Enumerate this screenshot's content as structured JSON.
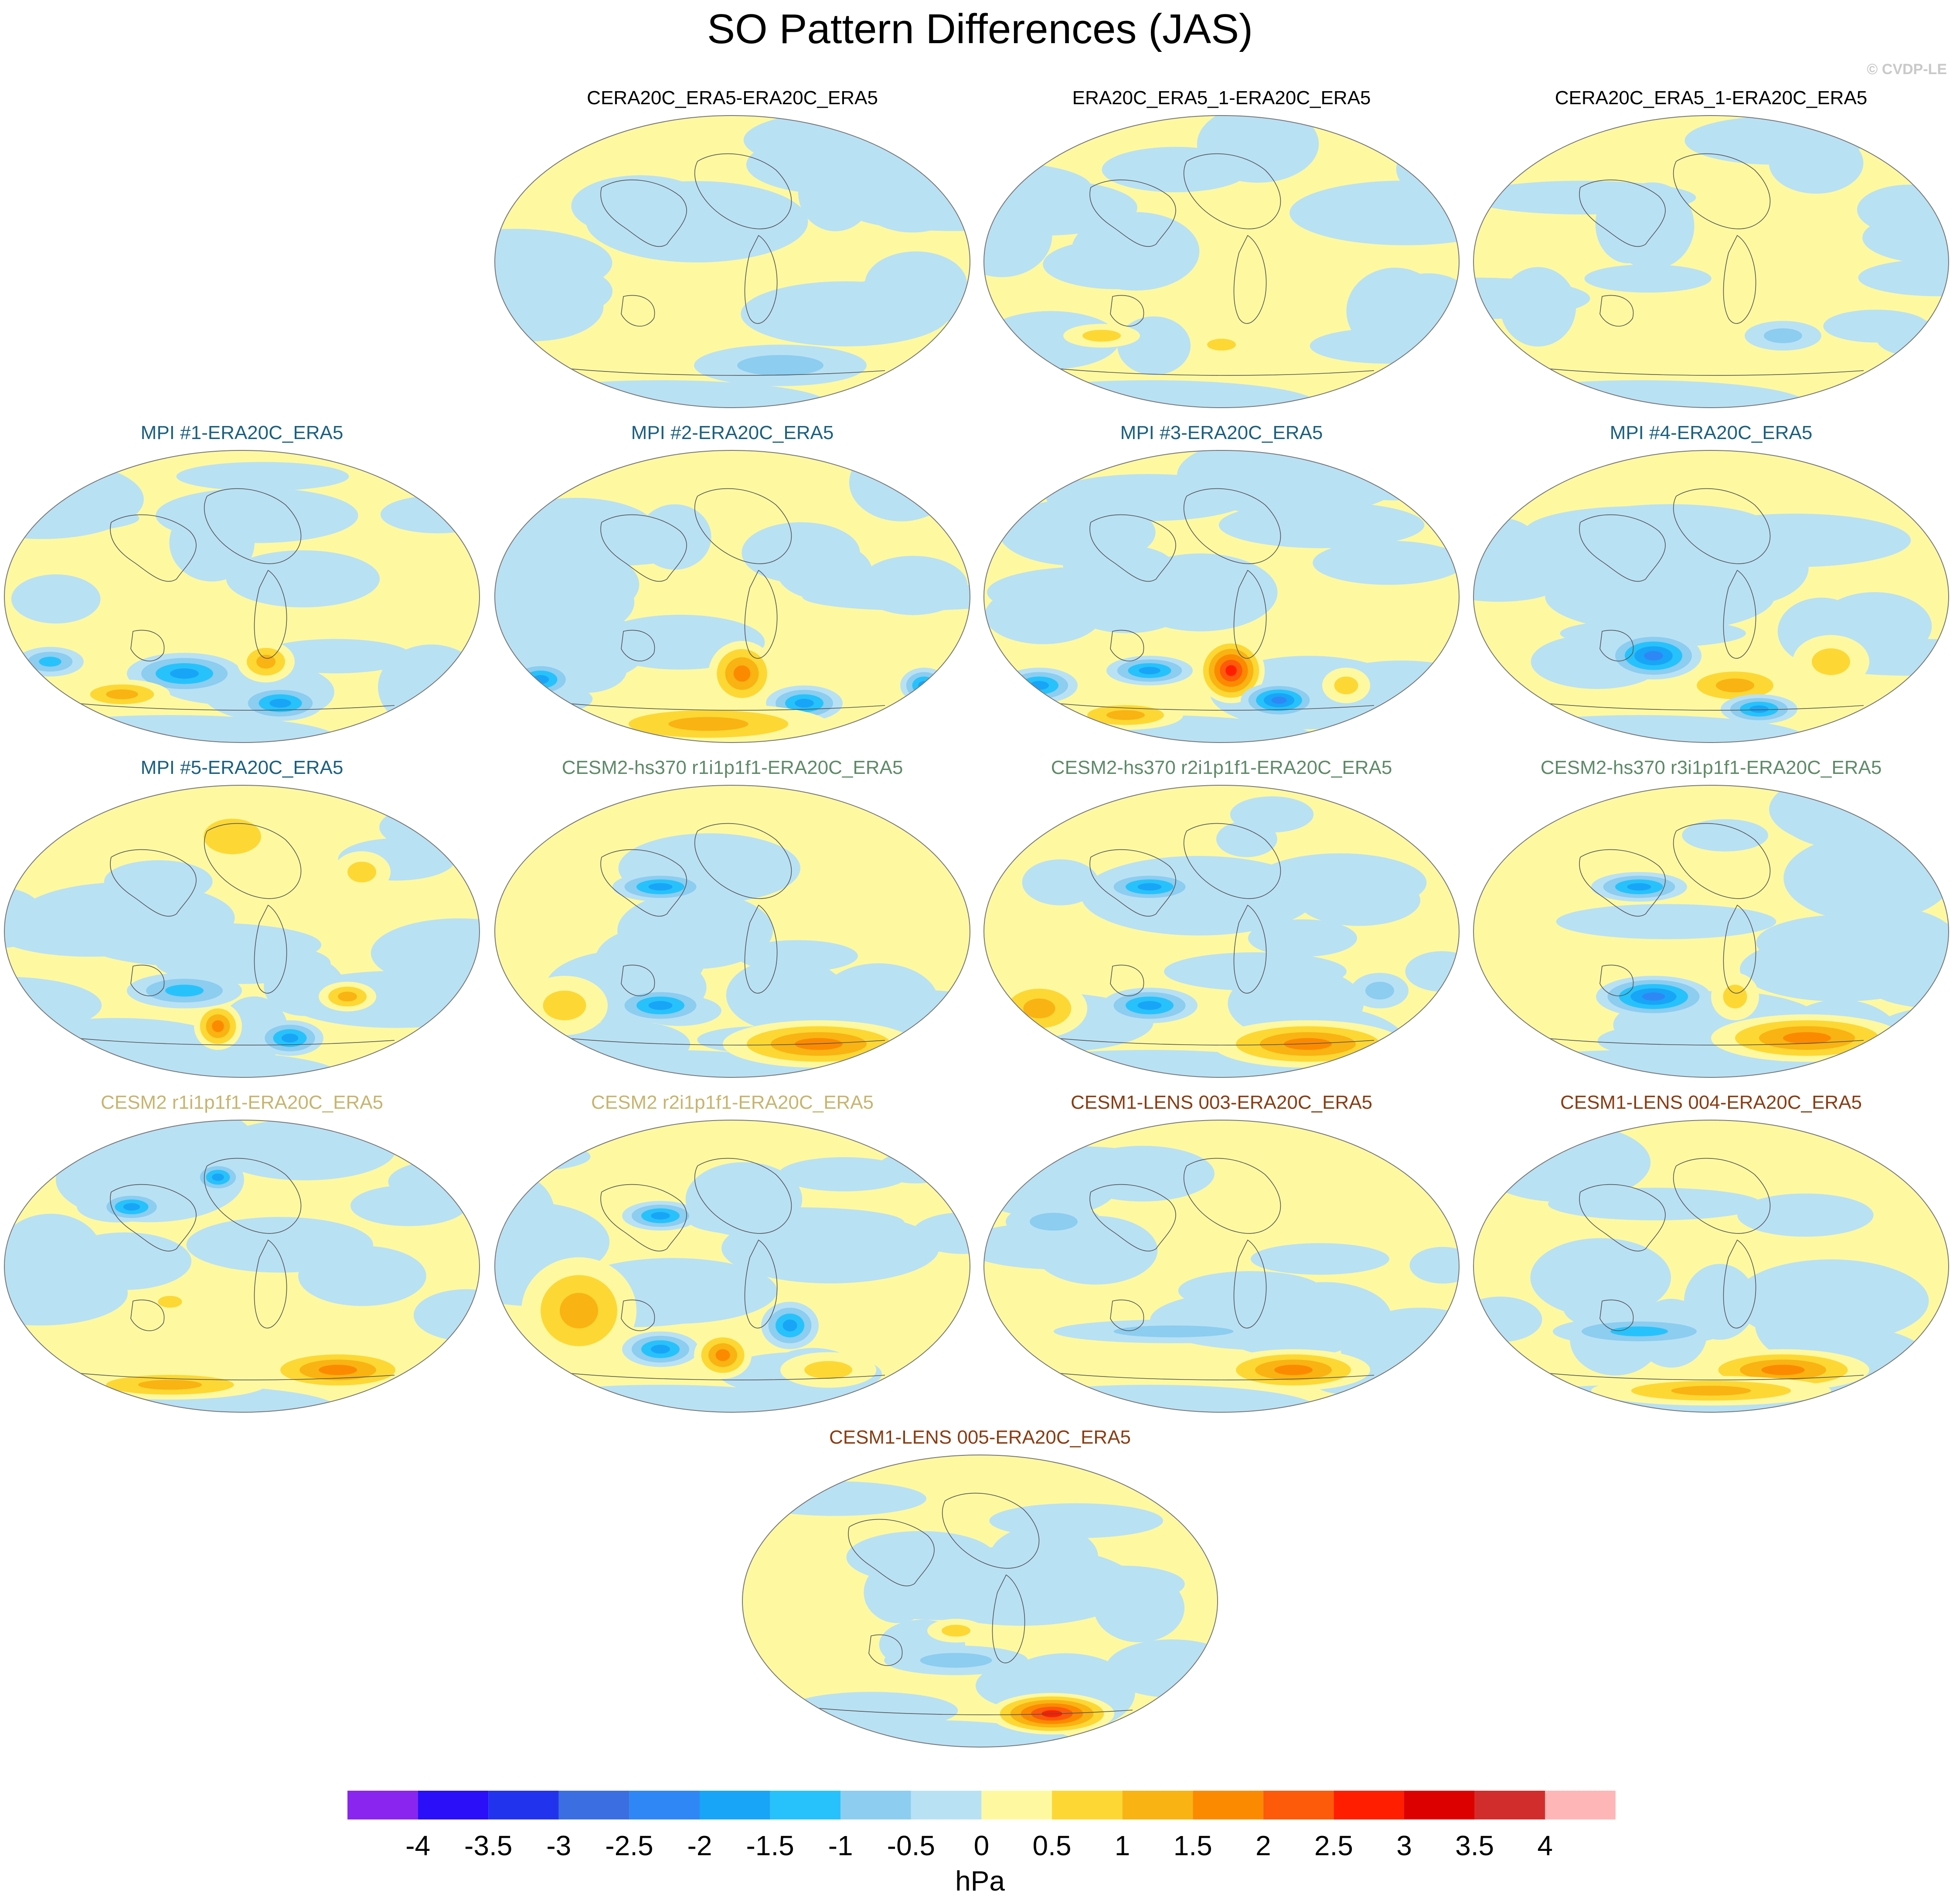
{
  "title": "SO Pattern Differences (JAS)",
  "credit": "© CVDP-LE",
  "colors": {
    "obs": "#000000",
    "mpi": "#1a6080",
    "cesm2_hs370": "#5e8a68",
    "cesm2": "#c8b46e",
    "cesm1_lens": "#8a3c12"
  },
  "panels": [
    {
      "title": "CERA20C_ERA5-ERA20C_ERA5",
      "group": "obs",
      "blobs": [
        [
          0.6,
          0.85,
          0.18,
          0.07,
          -1.0
        ],
        [
          0.15,
          0.6,
          0.1,
          0.08,
          -0.5
        ]
      ]
    },
    {
      "title": "ERA20C_ERA5_1-ERA20C_ERA5",
      "group": "obs",
      "blobs": [
        [
          0.25,
          0.75,
          0.08,
          0.04,
          0.8
        ],
        [
          0.5,
          0.78,
          0.06,
          0.04,
          0.8
        ]
      ]
    },
    {
      "title": "CERA20C_ERA5_1-ERA20C_ERA5",
      "group": "obs",
      "blobs": [
        [
          0.4,
          0.72,
          0.1,
          0.05,
          0.5
        ],
        [
          0.65,
          0.75,
          0.08,
          0.05,
          -0.6
        ]
      ]
    },
    {
      "title": "MPI #1-ERA20C_ERA5",
      "group": "mpi",
      "blobs": [
        [
          0.38,
          0.76,
          0.12,
          0.07,
          -1.8
        ],
        [
          0.55,
          0.72,
          0.06,
          0.07,
          1.2
        ],
        [
          0.58,
          0.86,
          0.09,
          0.06,
          -1.6
        ],
        [
          0.25,
          0.83,
          0.1,
          0.05,
          1.2
        ],
        [
          0.1,
          0.72,
          0.07,
          0.05,
          -1.2
        ]
      ]
    },
    {
      "title": "MPI #2-ERA20C_ERA5",
      "group": "mpi",
      "blobs": [
        [
          0.52,
          0.76,
          0.07,
          0.11,
          1.6
        ],
        [
          0.65,
          0.86,
          0.08,
          0.06,
          -1.9
        ],
        [
          0.1,
          0.78,
          0.07,
          0.06,
          -1.8
        ],
        [
          0.45,
          0.93,
          0.25,
          0.07,
          1.3
        ],
        [
          0.9,
          0.8,
          0.05,
          0.06,
          -1.6
        ]
      ]
    },
    {
      "title": "MPI #3-ERA20C_ERA5",
      "group": "mpi",
      "blobs": [
        [
          0.52,
          0.75,
          0.07,
          0.11,
          2.9
        ],
        [
          0.62,
          0.85,
          0.08,
          0.06,
          -2.1
        ],
        [
          0.35,
          0.75,
          0.09,
          0.05,
          -2.0
        ],
        [
          0.12,
          0.8,
          0.08,
          0.06,
          -1.8
        ],
        [
          0.3,
          0.9,
          0.12,
          0.05,
          1.2
        ],
        [
          0.76,
          0.8,
          0.05,
          0.06,
          1.0
        ]
      ]
    },
    {
      "title": "MPI #4-ERA20C_ERA5",
      "group": "mpi",
      "blobs": [
        [
          0.38,
          0.7,
          0.1,
          0.08,
          -2.1
        ],
        [
          0.55,
          0.8,
          0.12,
          0.07,
          1.4
        ],
        [
          0.6,
          0.88,
          0.08,
          0.05,
          -1.6
        ],
        [
          0.75,
          0.72,
          0.08,
          0.09,
          0.8
        ]
      ]
    },
    {
      "title": "MPI #5-ERA20C_ERA5",
      "group": "mpi",
      "blobs": [
        [
          0.45,
          0.82,
          0.05,
          0.08,
          1.9
        ],
        [
          0.6,
          0.86,
          0.07,
          0.06,
          -2.0
        ],
        [
          0.38,
          0.7,
          0.12,
          0.06,
          -1.5
        ],
        [
          0.72,
          0.72,
          0.06,
          0.05,
          1.2
        ],
        [
          0.48,
          0.18,
          0.12,
          0.12,
          0.9
        ],
        [
          0.75,
          0.3,
          0.06,
          0.07,
          0.9
        ]
      ]
    },
    {
      "title": "CESM2-hs370 r1i1p1f1-ERA20C_ERA5",
      "group": "cesm2_hs370",
      "blobs": [
        [
          0.35,
          0.35,
          0.1,
          0.05,
          -1.8
        ],
        [
          0.35,
          0.75,
          0.1,
          0.06,
          -1.6
        ],
        [
          0.68,
          0.88,
          0.2,
          0.08,
          1.6
        ],
        [
          0.15,
          0.75,
          0.09,
          0.1,
          0.8
        ]
      ]
    },
    {
      "title": "CESM2-hs370 r2i1p1f1-ERA20C_ERA5",
      "group": "cesm2_hs370",
      "blobs": [
        [
          0.35,
          0.35,
          0.1,
          0.05,
          -1.8
        ],
        [
          0.35,
          0.75,
          0.1,
          0.06,
          -1.6
        ],
        [
          0.68,
          0.88,
          0.2,
          0.08,
          2.0
        ],
        [
          0.12,
          0.76,
          0.1,
          0.1,
          1.3
        ],
        [
          0.83,
          0.7,
          0.06,
          0.06,
          -1.0
        ]
      ]
    },
    {
      "title": "CESM2-hs370 r3i1p1f1-ERA20C_ERA5",
      "group": "cesm2_hs370",
      "blobs": [
        [
          0.35,
          0.35,
          0.1,
          0.05,
          -1.8
        ],
        [
          0.38,
          0.72,
          0.12,
          0.07,
          -2.2
        ],
        [
          0.7,
          0.86,
          0.2,
          0.08,
          1.8
        ],
        [
          0.55,
          0.72,
          0.05,
          0.08,
          0.8
        ]
      ]
    },
    {
      "title": "CESM2 r1i1p1f1-ERA20C_ERA5",
      "group": "cesm2",
      "blobs": [
        [
          0.27,
          0.3,
          0.07,
          0.05,
          -1.9
        ],
        [
          0.45,
          0.2,
          0.05,
          0.05,
          -1.6
        ],
        [
          0.7,
          0.85,
          0.16,
          0.07,
          1.6
        ],
        [
          0.35,
          0.9,
          0.2,
          0.05,
          1.1
        ],
        [
          0.35,
          0.62,
          0.05,
          0.04,
          0.8
        ]
      ]
    },
    {
      "title": "CESM2 r2i1p1f1-ERA20C_ERA5",
      "group": "cesm2",
      "blobs": [
        [
          0.35,
          0.33,
          0.08,
          0.05,
          -1.6
        ],
        [
          0.35,
          0.78,
          0.08,
          0.06,
          -1.9
        ],
        [
          0.48,
          0.8,
          0.06,
          0.08,
          1.6
        ],
        [
          0.62,
          0.7,
          0.06,
          0.08,
          -1.9
        ],
        [
          0.18,
          0.65,
          0.12,
          0.18,
          1.1
        ],
        [
          0.7,
          0.85,
          0.1,
          0.06,
          1.0
        ]
      ]
    },
    {
      "title": "CESM1-LENS 003-ERA20C_ERA5",
      "group": "cesm1_lens",
      "blobs": [
        [
          0.65,
          0.85,
          0.16,
          0.07,
          1.6
        ],
        [
          0.4,
          0.72,
          0.25,
          0.04,
          -0.9
        ],
        [
          0.15,
          0.35,
          0.1,
          0.06,
          -1.0
        ]
      ]
    },
    {
      "title": "CESM1-LENS 004-ERA20C_ERA5",
      "group": "cesm1_lens",
      "blobs": [
        [
          0.65,
          0.85,
          0.18,
          0.07,
          1.9
        ],
        [
          0.35,
          0.72,
          0.18,
          0.05,
          -1.4
        ],
        [
          0.5,
          0.92,
          0.25,
          0.05,
          1.1
        ]
      ]
    },
    {
      "title": "CESM1-LENS 005-ERA20C_ERA5",
      "group": "cesm1_lens",
      "blobs": [
        [
          0.65,
          0.88,
          0.13,
          0.07,
          2.8
        ],
        [
          0.45,
          0.7,
          0.15,
          0.05,
          -1.0
        ],
        [
          0.45,
          0.6,
          0.06,
          0.04,
          0.8
        ]
      ]
    }
  ],
  "chart_data": {
    "type": "contour map panels",
    "title": "SO Pattern Differences (JAS)",
    "panel_titles": [
      "CERA20C_ERA5-ERA20C_ERA5",
      "ERA20C_ERA5_1-ERA20C_ERA5",
      "CERA20C_ERA5_1-ERA20C_ERA5",
      "MPI #1-ERA20C_ERA5",
      "MPI #2-ERA20C_ERA5",
      "MPI #3-ERA20C_ERA5",
      "MPI #4-ERA20C_ERA5",
      "MPI #5-ERA20C_ERA5",
      "CESM2-hs370 r1i1p1f1-ERA20C_ERA5",
      "CESM2-hs370 r2i1p1f1-ERA20C_ERA5",
      "CESM2-hs370 r3i1p1f1-ERA20C_ERA5",
      "CESM2 r1i1p1f1-ERA20C_ERA5",
      "CESM2 r2i1p1f1-ERA20C_ERA5",
      "CESM1-LENS 003-ERA20C_ERA5",
      "CESM1-LENS 004-ERA20C_ERA5",
      "CESM1-LENS 005-ERA20C_ERA5"
    ],
    "colorbar": {
      "units": "hPa",
      "labels": [
        "-4",
        "-3.5",
        "-3",
        "-2.5",
        "-2",
        "-1.5",
        "-1",
        "-0.5",
        "0",
        "0.5",
        "1",
        "1.5",
        "2",
        "2.5",
        "3",
        "3.5",
        "4"
      ],
      "levels": [
        -4,
        -3.5,
        -3,
        -2.5,
        -2,
        -1.5,
        -1,
        -0.5,
        0,
        0.5,
        1,
        1.5,
        2,
        2.5,
        3,
        3.5,
        4
      ],
      "colors": [
        "#8a25f0",
        "#2a0ff8",
        "#2233ee",
        "#3b6ee0",
        "#2f87f5",
        "#18a5f7",
        "#27c2fb",
        "#8ccdf0",
        "#b9e1f4",
        "#fef9a0",
        "#fdd835",
        "#f9b312",
        "#fc8a00",
        "#fd5a0a",
        "#ff1f00",
        "#dc0000",
        "#d22d2d",
        "#ffb6b6"
      ]
    }
  }
}
